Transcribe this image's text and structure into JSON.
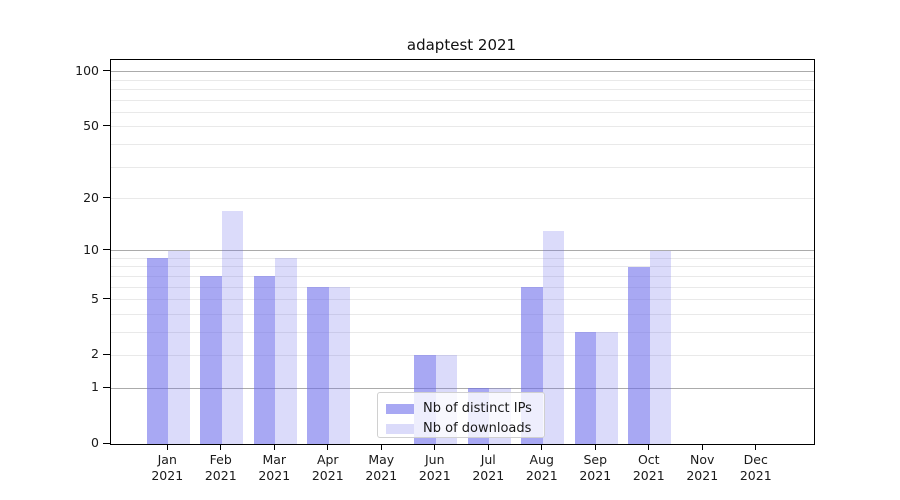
{
  "figure": {
    "title": "adaptest 2021"
  },
  "chart_data": {
    "type": "bar",
    "title": "adaptest 2021",
    "categories": [
      "Jan 2021",
      "Feb 2021",
      "Mar 2021",
      "Apr 2021",
      "May 2021",
      "Jun 2021",
      "Jul 2021",
      "Aug 2021",
      "Sep 2021",
      "Oct 2021",
      "Nov 2021",
      "Dec 2021"
    ],
    "series": [
      {
        "name": "Nb of distinct IPs",
        "values": [
          9,
          7,
          7,
          6,
          0,
          2,
          1,
          6,
          3,
          8,
          0,
          0
        ],
        "color": "rgba(105,105,235,0.58)"
      },
      {
        "name": "Nb of downloads",
        "values": [
          10,
          17,
          9,
          6,
          0,
          2,
          1,
          13,
          3,
          10,
          0,
          0
        ],
        "color": "rgba(105,105,235,0.24)"
      }
    ],
    "xlabel": "",
    "ylabel": "",
    "yscale": "log1p",
    "ylim": [
      0,
      116
    ],
    "yticks": [
      0,
      1,
      2,
      5,
      10,
      20,
      50,
      100
    ],
    "ytick_labels": [
      "0",
      "1",
      "2",
      "5",
      "10",
      "20",
      "50",
      "100"
    ],
    "gridlines": {
      "major": [
        1,
        10,
        100
      ],
      "minor": [
        2,
        3,
        4,
        5,
        6,
        7,
        8,
        9,
        20,
        30,
        40,
        50,
        60,
        70,
        80,
        90
      ]
    },
    "grid": true,
    "legend_position": "lower center"
  },
  "colors": {
    "bar_distinct_ips": "rgba(105,105,235,0.58)",
    "bar_downloads": "rgba(105,105,235,0.24)",
    "grid_major": "#ababab",
    "grid_minor": "#e9e9e9",
    "spine": "#000000",
    "text": "#1a1a1a",
    "legend_border": "#d0d0d0",
    "legend_bg": "rgba(255,255,255,0.8)"
  }
}
